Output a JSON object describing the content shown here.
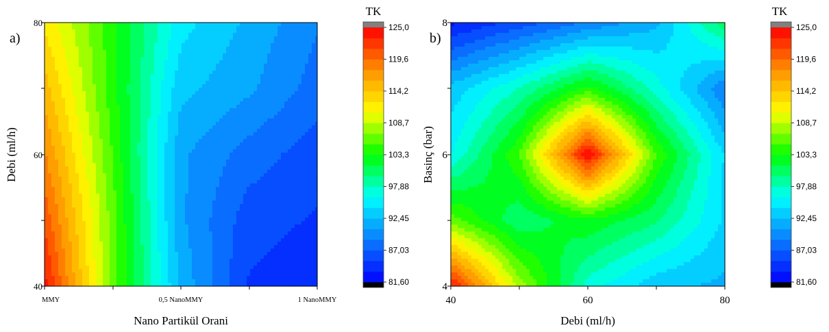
{
  "chart_data": [
    {
      "type": "contour",
      "panel_label": "a)",
      "title": "",
      "xlabel": "Nano Partikül Orani",
      "ylabel": "Debi (ml/h)",
      "x_categories": [
        "MMY",
        "0,5 NanoMMY",
        "1 NanoMMY"
      ],
      "x_ticks": [
        "MMY",
        "0,5 NanoMMY",
        "1 NanoMMY"
      ],
      "y_ticks": [
        "40",
        "60",
        "80"
      ],
      "ylim": [
        40,
        80
      ],
      "z_grid_note": "estimated response TK at grid nodes (rows = Debi 40..80 step 10, cols = ratio 0..1 step 0.25)",
      "grid_x": [
        0,
        0.25,
        0.5,
        0.75,
        1.0
      ],
      "grid_y": [
        40,
        50,
        60,
        70,
        80
      ],
      "z": [
        [
          124,
          106,
          92,
          85,
          84
        ],
        [
          121,
          106,
          91,
          86,
          85
        ],
        [
          118,
          105,
          91,
          88,
          86
        ],
        [
          115,
          104,
          93,
          91,
          88
        ],
        [
          112,
          104,
          95,
          92,
          89
        ]
      ],
      "legend_title": "TK",
      "colorbar_ticks": [
        "125,0",
        "119,6",
        "114,2",
        "108,7",
        "103,3",
        "97,88",
        "92,45",
        "87,03",
        "81,60"
      ],
      "zlim": [
        81.6,
        125.0
      ]
    },
    {
      "type": "contour",
      "panel_label": "b)",
      "title": "",
      "xlabel": "Debi (ml/h)",
      "ylabel": "Basinç (bar)",
      "x_ticks": [
        "40",
        "60",
        "80"
      ],
      "y_ticks": [
        "4",
        "6",
        "8"
      ],
      "xlim": [
        40,
        80
      ],
      "ylim": [
        4,
        8
      ],
      "z_grid_note": "estimated response TK at grid nodes (rows = Basinç 4..8 step 1, cols = Debi 40..80 step 10)",
      "grid_x": [
        40,
        50,
        60,
        70,
        80
      ],
      "grid_y": [
        4,
        5,
        6,
        7,
        8
      ],
      "z": [
        [
          124,
          108,
          97,
          93,
          92
        ],
        [
          106,
          100,
          103,
          100,
          94
        ],
        [
          96,
          105,
          125,
          105,
          94
        ],
        [
          93,
          98,
          104,
          97,
          89
        ],
        [
          83,
          86,
          89,
          92,
          101
        ]
      ],
      "legend_title": "TK",
      "colorbar_ticks": [
        "125,0",
        "119,6",
        "114,2",
        "108,7",
        "103,3",
        "97,88",
        "92,45",
        "87,03",
        "81,60"
      ],
      "zlim": [
        81.6,
        125.0
      ]
    }
  ],
  "colors": {
    "scale": [
      "#000000",
      "#0000ff",
      "#0a7cff",
      "#00ffff",
      "#00ff00",
      "#ffff00",
      "#ff9000",
      "#ff0000",
      "#808080"
    ]
  }
}
